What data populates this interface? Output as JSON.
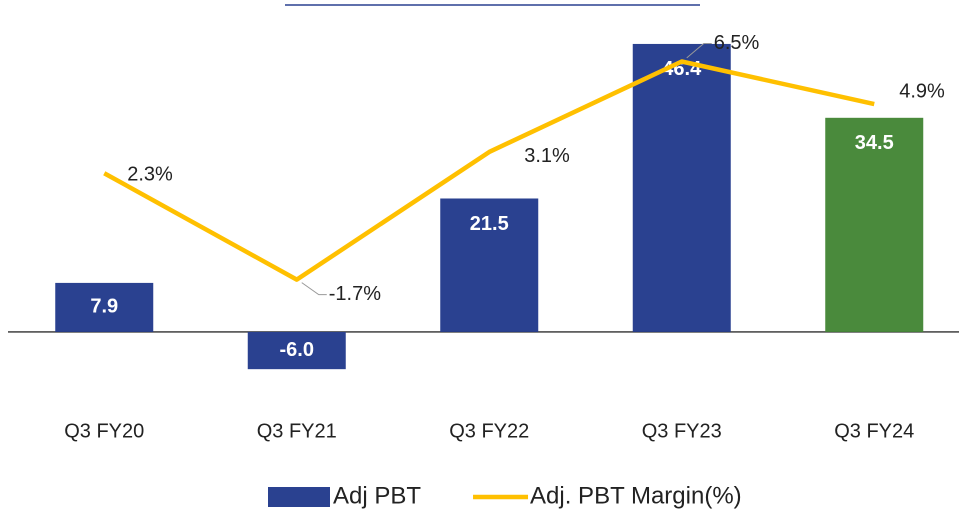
{
  "chart_data": {
    "type": "combo",
    "categories": [
      "Q3 FY20",
      "Q3 FY21",
      "Q3 FY22",
      "Q3 FY23",
      "Q3 FY24"
    ],
    "series": [
      {
        "name": "Adj PBT",
        "type": "bar",
        "color": "#2a4190",
        "colors": [
          "#2a4190",
          "#2a4190",
          "#2a4190",
          "#2a4190",
          "#4a8a3c"
        ],
        "values": [
          7.9,
          -6.0,
          21.5,
          46.4,
          34.5
        ],
        "value_labels": [
          "7.9",
          "-6.0",
          "21.5",
          "46.4",
          "34.5"
        ]
      },
      {
        "name": "Adj. PBT Margin(%)",
        "type": "line",
        "axis": "y2",
        "color": "#ffc000",
        "values": [
          2.3,
          -1.7,
          3.1,
          6.5,
          4.9
        ],
        "value_labels": [
          "2.3%",
          "-1.7%",
          "3.1%",
          "6.5%",
          "4.9%"
        ]
      }
    ],
    "ylim": [
      -10,
      50
    ],
    "y2lim": [
      -6,
      8
    ],
    "legend": "bottom"
  }
}
